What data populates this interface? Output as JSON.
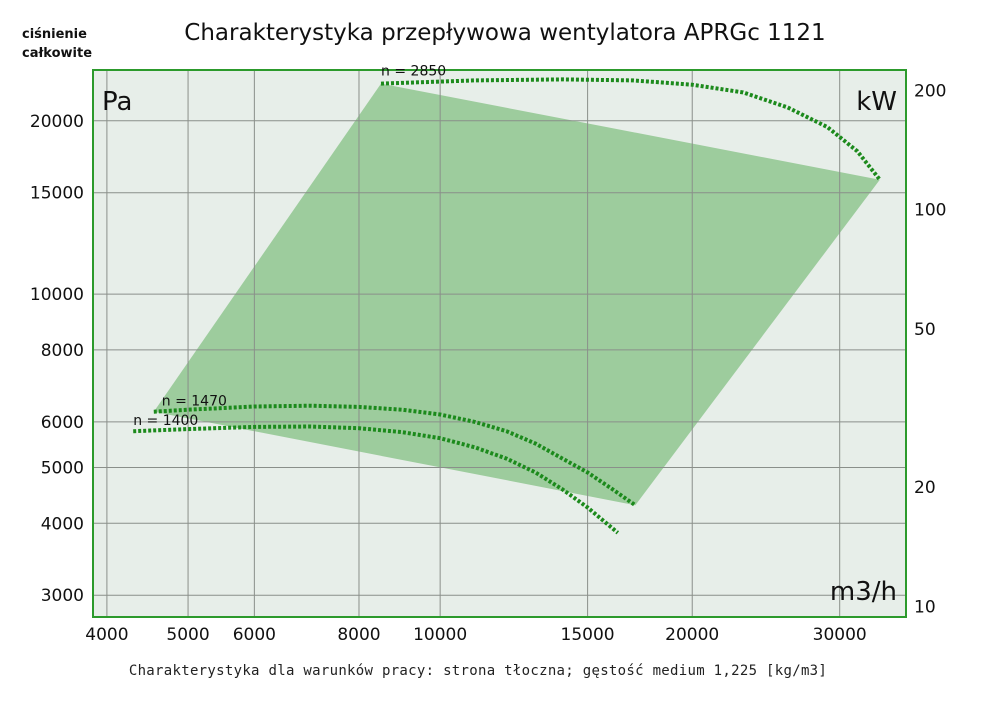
{
  "page": {
    "title": "Charakterystyka przepływowa wentylatora APRGc 1121",
    "corner_label_line1": "ciśnienie",
    "corner_label_line2": "całkowite",
    "footer": "Charakterystyka dla warunków pracy: strona tłoczna; gęstość medium 1,225 [kg/m3]",
    "unit_left": "Pa",
    "unit_right": "kW",
    "unit_x": "m3/h"
  },
  "colors": {
    "plot_bg": "#e7eee9",
    "frame": "#2c9a2c",
    "grid": "#8a8f8a",
    "region": "#9dcc9d",
    "curve": "#1c8a1c"
  },
  "chart_data": {
    "type": "line",
    "x_scale": "log",
    "y_scale": "log",
    "xlim": [
      3850,
      36000
    ],
    "ylim": [
      2750,
      24500
    ],
    "y2lim": [
      9.4,
      225
    ],
    "x_ticks": [
      4000,
      5000,
      6000,
      8000,
      10000,
      15000,
      20000,
      30000
    ],
    "y_ticks": [
      3000,
      4000,
      5000,
      6000,
      8000,
      10000,
      15000,
      20000
    ],
    "y2_ticks": [
      10,
      20,
      50,
      100,
      200
    ],
    "xlabel": "m3/h",
    "ylabel": "Pa",
    "y2label": "kW",
    "grid": true,
    "operating_region": {
      "x": [
        4550,
        8500,
        33500,
        17100,
        4550
      ],
      "y": [
        6250,
        23200,
        15800,
        4300,
        6250
      ]
    },
    "series": [
      {
        "name": "n = 2850",
        "x": [
          8500,
          11000,
          14000,
          17000,
          20000,
          23000,
          26000,
          29000,
          31500,
          33500
        ],
        "y": [
          23200,
          23500,
          23600,
          23500,
          23100,
          22400,
          21100,
          19500,
          17700,
          15800
        ]
      },
      {
        "name": "n = 1470",
        "x": [
          4550,
          5000,
          6000,
          7000,
          8000,
          9000,
          10000,
          11000,
          12000,
          13000,
          14000,
          15000,
          16000,
          17100
        ],
        "y": [
          6250,
          6300,
          6380,
          6400,
          6370,
          6300,
          6180,
          6000,
          5780,
          5500,
          5180,
          4900,
          4600,
          4300
        ]
      },
      {
        "name": "n = 1400",
        "x": [
          4300,
          5000,
          6000,
          7000,
          8000,
          9000,
          10000,
          11000,
          12000,
          13000,
          14000,
          15000,
          16300
        ],
        "y": [
          5780,
          5830,
          5880,
          5890,
          5850,
          5760,
          5620,
          5420,
          5180,
          4900,
          4580,
          4260,
          3850
        ]
      }
    ]
  }
}
